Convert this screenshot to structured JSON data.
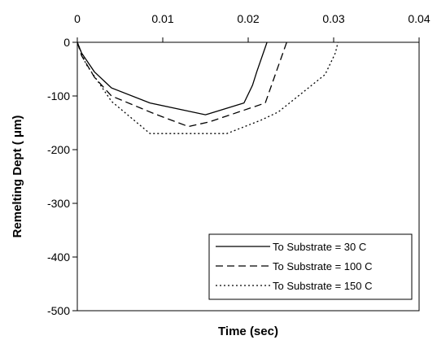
{
  "chart_data": {
    "type": "line",
    "title": "",
    "xlabel": "Time (sec)",
    "ylabel": "Remelting Dept ( μm)",
    "xlim": [
      0,
      0.04
    ],
    "ylim": [
      -500,
      0
    ],
    "x_ticks": [
      "0",
      "0.01",
      "0.02",
      "0.03",
      "0.04"
    ],
    "y_ticks": [
      "0",
      "-100",
      "-200",
      "-300",
      "-400",
      "-500"
    ],
    "x_tick_values": [
      0,
      0.01,
      0.02,
      0.03,
      0.04
    ],
    "y_tick_values": [
      0,
      -100,
      -200,
      -300,
      -400,
      -500
    ],
    "x_axis_position": "top",
    "grid": false,
    "legend_position": "bottom-right",
    "series": [
      {
        "name": "To Substrate = 30 C",
        "style": "solid",
        "x": [
          0,
          0.0005,
          0.002,
          0.004,
          0.0085,
          0.015,
          0.0195,
          0.0205,
          0.021,
          0.0222
        ],
        "y": [
          0,
          -20,
          -55,
          -85,
          -113,
          -135,
          -113,
          -80,
          -55,
          0
        ]
      },
      {
        "name": "To Substrate = 100 C",
        "style": "dashed",
        "x": [
          0,
          0.0005,
          0.002,
          0.004,
          0.009,
          0.013,
          0.0155,
          0.022,
          0.0235,
          0.0245
        ],
        "y": [
          0,
          -25,
          -65,
          -100,
          -133,
          -157,
          -148,
          -113,
          -45,
          0
        ]
      },
      {
        "name": "To Substrate = 150 C",
        "style": "dotted",
        "x": [
          0,
          0.001,
          0.004,
          0.0085,
          0.0175,
          0.0215,
          0.0235,
          0.029,
          0.0302,
          0.0305
        ],
        "y": [
          0,
          -40,
          -110,
          -170,
          -170,
          -145,
          -130,
          -60,
          -20,
          0
        ]
      }
    ]
  }
}
